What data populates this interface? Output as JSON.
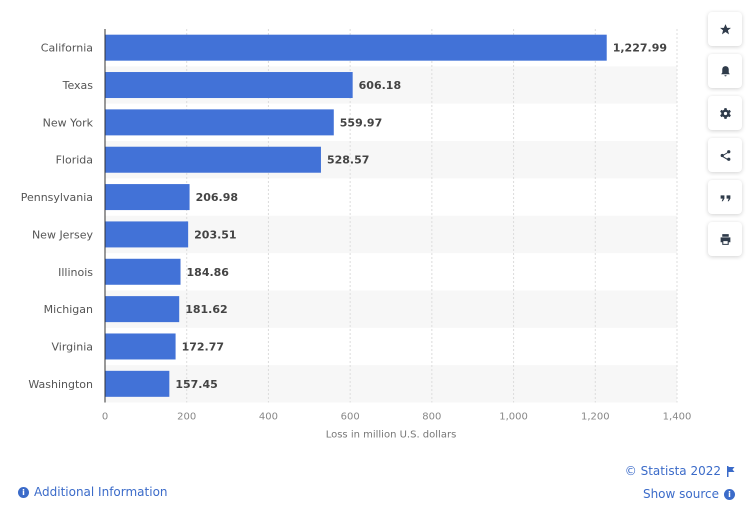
{
  "chart_data": {
    "type": "bar",
    "orientation": "horizontal",
    "categories": [
      "California",
      "Texas",
      "New York",
      "Florida",
      "Pennsylvania",
      "New Jersey",
      "Illinois",
      "Michigan",
      "Virginia",
      "Washington"
    ],
    "values": [
      1227.99,
      606.18,
      559.97,
      528.57,
      206.98,
      203.51,
      184.86,
      181.62,
      172.77,
      157.45
    ],
    "value_labels": [
      "1,227.99",
      "606.18",
      "559.97",
      "528.57",
      "206.98",
      "203.51",
      "184.86",
      "181.62",
      "172.77",
      "157.45"
    ],
    "xlabel": "Loss in million U.S. dollars",
    "ylabel": "",
    "xlim": [
      0,
      1400
    ],
    "xticks": [
      0,
      200,
      400,
      600,
      800,
      1000,
      1200,
      1400
    ],
    "xtick_labels": [
      "0",
      "200",
      "400",
      "600",
      "800",
      "1,000",
      "1,200",
      "1,400"
    ],
    "grid": true,
    "bar_color": "#4272d7"
  },
  "footer": {
    "copyright": "© Statista 2022",
    "show_source": "Show source",
    "additional_info": "Additional Information"
  },
  "sidebar_icons": [
    "star-icon",
    "bell-icon",
    "gear-icon",
    "share-icon",
    "quote-icon",
    "print-icon"
  ],
  "accent_color": "#3b6bc9"
}
